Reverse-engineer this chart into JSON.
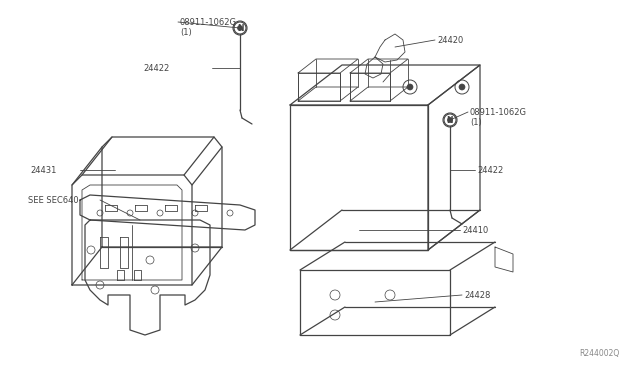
{
  "bg_color": "#ffffff",
  "line_color": "#444444",
  "fig_width": 6.4,
  "fig_height": 3.72,
  "dpi": 100,
  "watermark": "R244002Q",
  "label_fs": 6.0,
  "parts": {
    "battery_cover_label": "24431",
    "battery_label": "24410",
    "tray_label": "24428",
    "bracket_label": "SEE SEC640",
    "cable_left_label": "24422",
    "cable_right_label": "24422",
    "terminal_label": "24420",
    "bolt_label": "08911-1062G",
    "bolt_qty": "(1)"
  }
}
